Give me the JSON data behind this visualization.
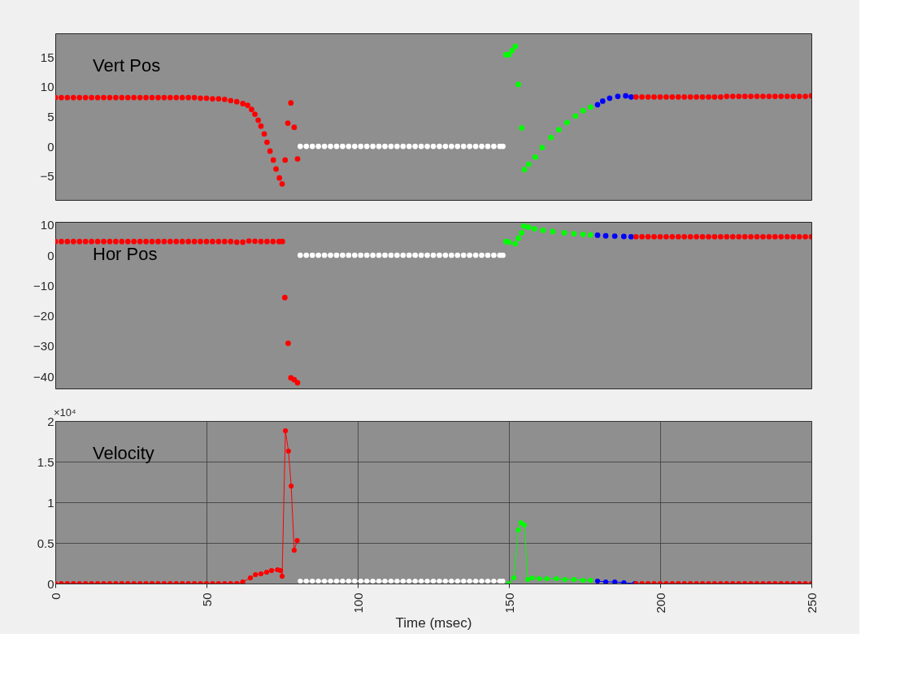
{
  "chart_data": [
    {
      "type": "scatter",
      "annotations": [
        "Vert Pos"
      ],
      "xlim": [
        0,
        250
      ],
      "ylim": [
        -9,
        19
      ],
      "yticks": [
        -5,
        0,
        5,
        10,
        15
      ],
      "tick_labels": "y",
      "grid": false,
      "marker": "circle",
      "series": [
        {
          "color": "#ff0000",
          "x": [
            0,
            2,
            4,
            6,
            8,
            10,
            12,
            14,
            16,
            18,
            20,
            22,
            24,
            26,
            28,
            30,
            32,
            34,
            36,
            38,
            40,
            42,
            44,
            46,
            48,
            50,
            52,
            54,
            56,
            58,
            60,
            62,
            63.6,
            64.9,
            66.0,
            67.1,
            68.0,
            69.1,
            70.0,
            71.0,
            72.1,
            73.0,
            74.1,
            75.0,
            76.0,
            76.9,
            77.9,
            79.0,
            80.1
          ],
          "values": [
            8.2,
            8.2,
            8.2,
            8.2,
            8.2,
            8.2,
            8.2,
            8.2,
            8.2,
            8.2,
            8.2,
            8.2,
            8.2,
            8.2,
            8.2,
            8.2,
            8.2,
            8.2,
            8.2,
            8.2,
            8.2,
            8.2,
            8.2,
            8.2,
            8.1,
            8.1,
            8.0,
            8.0,
            7.9,
            7.7,
            7.5,
            7.2,
            6.9,
            6.2,
            5.4,
            4.4,
            3.4,
            2.1,
            0.7,
            -0.8,
            -2.3,
            -3.8,
            -5.3,
            -6.3,
            -2.3,
            3.9,
            7.3,
            3.2,
            -2.1
          ]
        },
        {
          "color": "#ffffff",
          "x": [
            81,
            83,
            85,
            87,
            89,
            91,
            93,
            95,
            97,
            99,
            101,
            103,
            105,
            107,
            109,
            111,
            113,
            115,
            117,
            119,
            121,
            123,
            125,
            127,
            129,
            131,
            133,
            135,
            137,
            139,
            141,
            143,
            145,
            147,
            148
          ],
          "values": [
            0,
            0,
            0,
            0,
            0,
            0,
            0,
            0,
            0,
            0,
            0,
            0,
            0,
            0,
            0,
            0,
            0,
            0,
            0,
            0,
            0,
            0,
            0,
            0,
            0,
            0,
            0,
            0,
            0,
            0,
            0,
            0,
            0,
            0,
            0
          ]
        },
        {
          "color": "#00ff00",
          "x": [
            149.0,
            150.0,
            151.0,
            152.1,
            153.1,
            154.2,
            155.1,
            156.5,
            158.7,
            161,
            163.9,
            166.5,
            169.2,
            172,
            174.5,
            177
          ],
          "values": [
            15.4,
            15.4,
            16.1,
            16.8,
            10.4,
            3.1,
            -3.9,
            -3.0,
            -1.8,
            -0.2,
            1.5,
            2.8,
            4.0,
            5.1,
            6.0,
            6.6
          ]
        },
        {
          "color": "#0000ff",
          "x": [
            179.3,
            181,
            183.3,
            186,
            188.6,
            190.4
          ],
          "values": [
            7.0,
            7.6,
            8.1,
            8.4,
            8.5,
            8.3
          ]
        },
        {
          "color": "#ff0000",
          "x": [
            192,
            194,
            196,
            198,
            200,
            202,
            204,
            206,
            208,
            210,
            212,
            214,
            216,
            218,
            220,
            222,
            224,
            226,
            228,
            230,
            232,
            234,
            236,
            238,
            240,
            242,
            244,
            246,
            248,
            250
          ],
          "values": [
            8.3,
            8.3,
            8.3,
            8.3,
            8.3,
            8.3,
            8.3,
            8.3,
            8.3,
            8.3,
            8.3,
            8.3,
            8.3,
            8.3,
            8.3,
            8.4,
            8.4,
            8.4,
            8.4,
            8.4,
            8.4,
            8.4,
            8.4,
            8.4,
            8.4,
            8.4,
            8.4,
            8.4,
            8.4,
            8.5
          ]
        }
      ]
    },
    {
      "type": "scatter",
      "annotations": [
        "Hor Pos"
      ],
      "xlim": [
        0,
        250
      ],
      "ylim": [
        -44,
        11
      ],
      "yticks": [
        -40,
        -30,
        -20,
        -10,
        0,
        10
      ],
      "tick_labels": "y",
      "grid": false,
      "marker": "circle",
      "series": [
        {
          "color": "#ff0000",
          "x": [
            0,
            2,
            4,
            6,
            8,
            10,
            12,
            14,
            16,
            18,
            20,
            22,
            24,
            26,
            28,
            30,
            32,
            34,
            36,
            38,
            40,
            42,
            44,
            46,
            48,
            50,
            52,
            54,
            56,
            58,
            60,
            62,
            64,
            66,
            68,
            70,
            72,
            74,
            75.1,
            75.9,
            77.0,
            77.9,
            79.0,
            80.1
          ],
          "values": [
            4.5,
            4.5,
            4.5,
            4.5,
            4.5,
            4.5,
            4.5,
            4.5,
            4.5,
            4.5,
            4.5,
            4.5,
            4.5,
            4.5,
            4.5,
            4.5,
            4.5,
            4.5,
            4.5,
            4.5,
            4.5,
            4.5,
            4.5,
            4.5,
            4.5,
            4.5,
            4.5,
            4.5,
            4.5,
            4.5,
            4.3,
            4.3,
            4.7,
            4.6,
            4.5,
            4.5,
            4.5,
            4.5,
            4.5,
            -14.0,
            -29.1,
            -40.5,
            -41.1,
            -42.1
          ]
        },
        {
          "color": "#ffffff",
          "x": [
            81,
            83,
            85,
            87,
            89,
            91,
            93,
            95,
            97,
            99,
            101,
            103,
            105,
            107,
            109,
            111,
            113,
            115,
            117,
            119,
            121,
            123,
            125,
            127,
            129,
            131,
            133,
            135,
            137,
            139,
            141,
            143,
            145,
            147,
            148
          ],
          "values": [
            0,
            0,
            0,
            0,
            0,
            0,
            0,
            0,
            0,
            0,
            0,
            0,
            0,
            0,
            0,
            0,
            0,
            0,
            0,
            0,
            0,
            0,
            0,
            0,
            0,
            0,
            0,
            0,
            0,
            0,
            0,
            0,
            0,
            0,
            0
          ]
        },
        {
          "color": "#00ff00",
          "x": [
            149.0,
            150.0,
            152.1,
            153.1,
            154.2,
            154.9,
            156.5,
            158.5,
            161.3,
            164.5,
            168.3,
            171.5,
            174.5,
            177
          ],
          "values": [
            4.5,
            4.3,
            3.8,
            5.6,
            7.4,
            9.6,
            9.2,
            8.7,
            8.2,
            7.8,
            7.4,
            7.1,
            6.9,
            6.7
          ]
        },
        {
          "color": "#0000ff",
          "x": [
            179.3,
            182,
            185,
            188,
            190.4
          ],
          "values": [
            6.6,
            6.4,
            6.3,
            6.2,
            6.1
          ]
        },
        {
          "color": "#ff0000",
          "x": [
            192,
            194,
            196,
            198,
            200,
            202,
            204,
            206,
            208,
            210,
            212,
            214,
            216,
            218,
            220,
            222,
            224,
            226,
            228,
            230,
            232,
            234,
            236,
            238,
            240,
            242,
            244,
            246,
            248,
            250
          ],
          "values": [
            6.1,
            6.1,
            6.1,
            6.1,
            6.1,
            6.1,
            6.1,
            6.1,
            6.1,
            6.1,
            6.1,
            6.1,
            6.1,
            6.1,
            6.1,
            6.1,
            6.1,
            6.1,
            6.1,
            6.1,
            6.1,
            6.1,
            6.1,
            6.1,
            6.1,
            6.1,
            6.1,
            6.1,
            6.1,
            6.1
          ]
        }
      ]
    },
    {
      "type": "line",
      "annotations": [
        "Velocity",
        "×10⁴"
      ],
      "xlabel": "Time (msec)",
      "xlim": [
        0,
        250
      ],
      "xticks": [
        0,
        50,
        100,
        150,
        200,
        250
      ],
      "ylim": [
        0,
        2
      ],
      "yticks": [
        0,
        0.5,
        1,
        1.5,
        2
      ],
      "grid": true,
      "marker": "circle",
      "line_style": "solid",
      "series": [
        {
          "color": "#ff0000",
          "x": [
            0,
            2,
            4,
            6,
            8,
            10,
            12,
            14,
            16,
            18,
            20,
            22,
            24,
            26,
            28,
            30,
            32,
            34,
            36,
            38,
            40,
            42,
            44,
            46,
            48,
            50,
            52,
            54,
            56,
            58,
            60,
            62,
            64.5,
            66.2,
            68,
            69.9,
            71.5,
            73.5,
            74.5,
            75.0,
            76.1,
            77.1,
            78.0,
            79.0,
            80.0
          ],
          "values": [
            0,
            0,
            0,
            0,
            0,
            0,
            0,
            0,
            0,
            0,
            0,
            0,
            0,
            0,
            0,
            0,
            0,
            0,
            0,
            0,
            0,
            0,
            0,
            0,
            0,
            0,
            0,
            0,
            0,
            0,
            0,
            0.02,
            0.07,
            0.11,
            0.12,
            0.14,
            0.16,
            0.17,
            0.16,
            0.09,
            1.88,
            1.63,
            1.2,
            0.41,
            0.53
          ]
        },
        {
          "color": "#ffffff",
          "x": [
            81,
            83,
            85,
            87,
            89,
            91,
            93,
            95,
            97,
            99,
            101,
            103,
            105,
            107,
            109,
            111,
            113,
            115,
            117,
            119,
            121,
            123,
            125,
            127,
            129,
            131,
            133,
            135,
            137,
            139,
            141,
            143,
            145,
            147,
            148
          ],
          "values": [
            0.03,
            0.03,
            0.03,
            0.03,
            0.03,
            0.03,
            0.03,
            0.03,
            0.03,
            0.03,
            0.03,
            0.03,
            0.03,
            0.03,
            0.03,
            0.03,
            0.03,
            0.03,
            0.03,
            0.03,
            0.03,
            0.03,
            0.03,
            0.03,
            0.03,
            0.03,
            0.03,
            0.03,
            0.03,
            0.03,
            0.03,
            0.03,
            0.03,
            0.03,
            0.03
          ]
        },
        {
          "color": "#00ff00",
          "x": [
            149.9,
            151.6,
            153.1,
            154.0,
            155.1,
            156.2,
            157.7,
            160,
            162.5,
            165.7,
            168.5,
            171.5,
            174.5,
            177
          ],
          "values": [
            0,
            0.07,
            0.66,
            0.75,
            0.72,
            0.05,
            0.07,
            0.06,
            0.06,
            0.06,
            0.05,
            0.05,
            0.04,
            0.04
          ]
        },
        {
          "color": "#0000ff",
          "x": [
            179.3,
            182,
            185,
            188,
            191.6
          ],
          "values": [
            0.03,
            0.02,
            0.02,
            0.01,
            0.0
          ]
        },
        {
          "color": "#ff0000",
          "x": [
            192,
            194,
            196,
            198,
            200,
            202,
            204,
            206,
            208,
            210,
            212,
            214,
            216,
            218,
            220,
            222,
            224,
            226,
            228,
            230,
            232,
            234,
            236,
            238,
            240,
            242,
            244,
            246,
            248,
            250
          ],
          "values": [
            0,
            0,
            0,
            0,
            0,
            0,
            0,
            0,
            0,
            0,
            0,
            0,
            0,
            0,
            0,
            0,
            0,
            0,
            0,
            0,
            0,
            0,
            0,
            0,
            0,
            0,
            0,
            0,
            0,
            0
          ]
        }
      ]
    }
  ]
}
